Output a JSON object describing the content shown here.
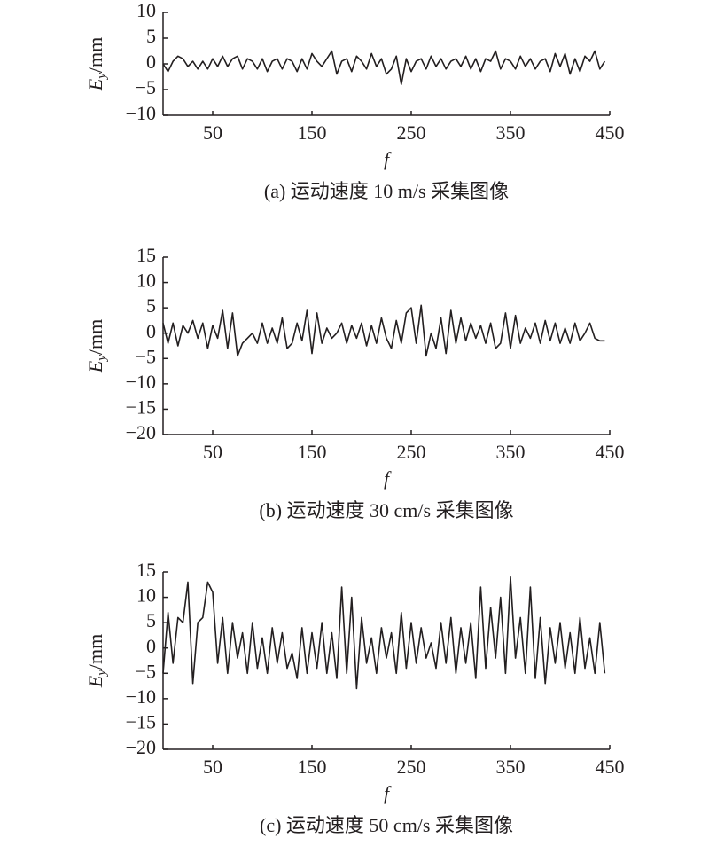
{
  "chart_data": [
    {
      "type": "line",
      "title": "(a) 运动速度 10 m/s 采集图像",
      "xlabel": "f",
      "ylabel": [
        "E",
        "y",
        "/mm"
      ],
      "color": "#231f20",
      "xlim": [
        0,
        450
      ],
      "xticks": [
        50,
        150,
        250,
        350,
        450
      ],
      "ylim": [
        -10,
        10
      ],
      "yticks": [
        10,
        5,
        0,
        {
          "value": -5,
          "label": "−5"
        },
        {
          "value": -10,
          "label": "−10"
        }
      ],
      "x": [
        0,
        5,
        10,
        15,
        20,
        25,
        30,
        35,
        40,
        45,
        50,
        55,
        60,
        65,
        70,
        75,
        80,
        85,
        90,
        95,
        100,
        105,
        110,
        115,
        120,
        125,
        130,
        135,
        140,
        145,
        150,
        155,
        160,
        165,
        170,
        175,
        180,
        185,
        190,
        195,
        200,
        205,
        210,
        215,
        220,
        225,
        230,
        235,
        240,
        245,
        250,
        255,
        260,
        265,
        270,
        275,
        280,
        285,
        290,
        295,
        300,
        305,
        310,
        315,
        320,
        325,
        330,
        335,
        340,
        345,
        350,
        355,
        360,
        365,
        370,
        375,
        380,
        385,
        390,
        395,
        400,
        405,
        410,
        415,
        420,
        425,
        430,
        435,
        440,
        445
      ],
      "values": [
        0,
        -1.5,
        0.5,
        1.5,
        1,
        -0.5,
        0.5,
        -1,
        0.5,
        -1,
        1,
        -0.5,
        1.5,
        -0.5,
        1,
        1.5,
        -1,
        1,
        0.5,
        -1,
        1,
        -1.5,
        0.5,
        1,
        -1,
        1,
        0.5,
        -1.5,
        1,
        -1,
        2,
        0.5,
        -0.5,
        1,
        2.5,
        -2,
        0.5,
        1,
        -1.5,
        1.5,
        0.5,
        -1,
        2,
        -0.5,
        1,
        -2,
        -1,
        1.5,
        -4,
        1,
        -1.5,
        0.5,
        1,
        -1,
        1.5,
        -0.5,
        1,
        -1,
        0.5,
        1,
        -0.5,
        1.5,
        -1,
        1,
        -1.5,
        1,
        0.5,
        2.5,
        -1,
        1,
        0.5,
        -1,
        1.5,
        -0.5,
        1,
        -1,
        0.5,
        1,
        -1.5,
        2,
        -0.5,
        2,
        -2,
        1,
        -1.5,
        1.5,
        0.5,
        2.5,
        -1,
        0.5
      ]
    },
    {
      "type": "line",
      "title": "(b) 运动速度 30 cm/s 采集图像",
      "xlabel": "f",
      "ylabel": [
        "E",
        "y",
        "/mm"
      ],
      "color": "#231f20",
      "xlim": [
        0,
        450
      ],
      "xticks": [
        50,
        150,
        250,
        350,
        450
      ],
      "ylim": [
        -20,
        15
      ],
      "yticks": [
        15,
        10,
        5,
        0,
        {
          "value": -5,
          "label": "−5"
        },
        {
          "value": -10,
          "label": "−10"
        },
        {
          "value": -15,
          "label": "−15"
        },
        {
          "value": -20,
          "label": "−20"
        }
      ],
      "x": [
        0,
        5,
        10,
        15,
        20,
        25,
        30,
        35,
        40,
        45,
        50,
        55,
        60,
        65,
        70,
        75,
        80,
        85,
        90,
        95,
        100,
        105,
        110,
        115,
        120,
        125,
        130,
        135,
        140,
        145,
        150,
        155,
        160,
        165,
        170,
        175,
        180,
        185,
        190,
        195,
        200,
        205,
        210,
        215,
        220,
        225,
        230,
        235,
        240,
        245,
        250,
        255,
        260,
        265,
        270,
        275,
        280,
        285,
        290,
        295,
        300,
        305,
        310,
        315,
        320,
        325,
        330,
        335,
        340,
        345,
        350,
        355,
        360,
        365,
        370,
        375,
        380,
        385,
        390,
        395,
        400,
        405,
        410,
        415,
        420,
        425,
        430,
        435,
        440,
        445
      ],
      "values": [
        2,
        -2,
        2,
        -2.5,
        1.5,
        0,
        2.5,
        -1,
        2,
        -3,
        1.5,
        -1,
        4.5,
        -3,
        4,
        -4.5,
        -2,
        -1,
        0,
        -2,
        2,
        -2,
        1,
        -2,
        3,
        -3,
        -2,
        2,
        -1.5,
        4.5,
        -4,
        4,
        -2,
        1,
        -1,
        0,
        2,
        -2,
        1.5,
        -1,
        2,
        -2.5,
        1.5,
        -2,
        3,
        -1,
        -3,
        2.5,
        -2,
        4,
        5,
        -2,
        5.5,
        -4.5,
        0,
        -3,
        3,
        -4,
        4.5,
        -2,
        3,
        -1.5,
        2,
        -1,
        1.5,
        -2,
        2,
        -3,
        -2,
        4,
        -3,
        3.5,
        -2,
        1,
        -1,
        2,
        -2,
        2.5,
        -1.5,
        2,
        -2,
        1,
        -2,
        2,
        -1.5,
        0,
        2,
        -1,
        -1.5,
        -1.5
      ]
    },
    {
      "type": "line",
      "title": "(c) 运动速度 50 cm/s 采集图像",
      "xlabel": "f",
      "ylabel": [
        "E",
        "y",
        "/mm"
      ],
      "color": "#231f20",
      "xlim": [
        0,
        450
      ],
      "xticks": [
        50,
        150,
        250,
        350,
        450
      ],
      "ylim": [
        -20,
        15
      ],
      "yticks": [
        15,
        10,
        5,
        0,
        {
          "value": -5,
          "label": "−5"
        },
        {
          "value": -10,
          "label": "−10"
        },
        {
          "value": -15,
          "label": "−15"
        },
        {
          "value": -20,
          "label": "−20"
        }
      ],
      "x": [
        0,
        5,
        10,
        15,
        20,
        25,
        30,
        35,
        40,
        45,
        50,
        55,
        60,
        65,
        70,
        75,
        80,
        85,
        90,
        95,
        100,
        105,
        110,
        115,
        120,
        125,
        130,
        135,
        140,
        145,
        150,
        155,
        160,
        165,
        170,
        175,
        180,
        185,
        190,
        195,
        200,
        205,
        210,
        215,
        220,
        225,
        230,
        235,
        240,
        245,
        250,
        255,
        260,
        265,
        270,
        275,
        280,
        285,
        290,
        295,
        300,
        305,
        310,
        315,
        320,
        325,
        330,
        335,
        340,
        345,
        350,
        355,
        360,
        365,
        370,
        375,
        380,
        385,
        390,
        395,
        400,
        405,
        410,
        415,
        420,
        425,
        430,
        435,
        440,
        445
      ],
      "values": [
        -5,
        7,
        -3,
        6,
        5,
        13,
        -7,
        5,
        6,
        13,
        11,
        -3,
        6,
        -5,
        5,
        -2,
        3,
        -5,
        5,
        -4,
        2,
        -5,
        4,
        -3,
        3,
        -4,
        -1,
        -6,
        4,
        -5,
        3,
        -4,
        5,
        -5,
        3,
        -6,
        12,
        -5,
        10,
        -8,
        6,
        -3,
        2,
        -5,
        4,
        -2,
        3,
        -5,
        7,
        -4,
        5,
        -3,
        4,
        -2,
        1,
        -4,
        5,
        -3,
        6,
        -5,
        4,
        -3,
        5,
        -6,
        12,
        -4,
        8,
        -2,
        10,
        -5,
        14,
        -2,
        6,
        -5,
        12,
        -6,
        6,
        -7,
        4,
        -3,
        5,
        -4,
        3,
        -5,
        6,
        -4,
        2,
        -5,
        5,
        -5
      ]
    }
  ]
}
